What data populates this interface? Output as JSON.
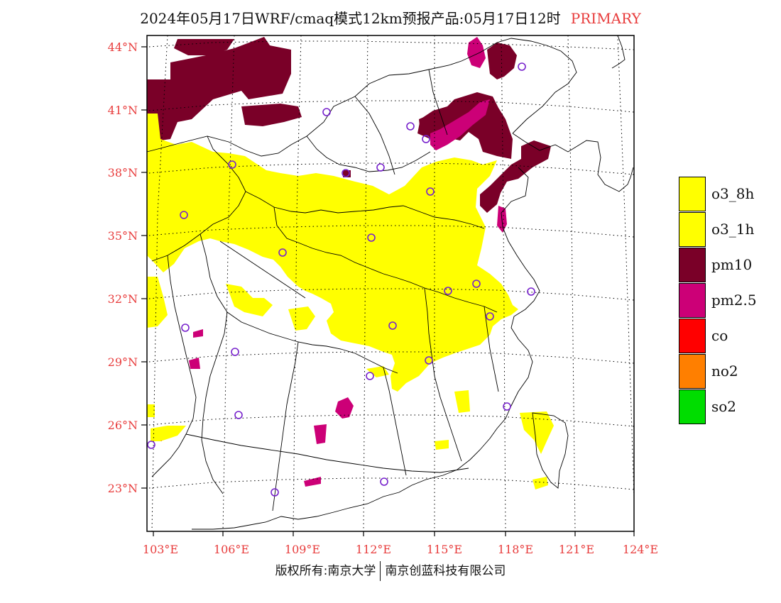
{
  "header": {
    "title": "2024年05月17日WRF/cmaq模式12km预报产品:05月17日12时",
    "tag": "PRIMARY"
  },
  "map": {
    "lat_labels": [
      "44°N",
      "41°N",
      "38°N",
      "35°N",
      "32°N",
      "29°N",
      "26°N",
      "23°N"
    ],
    "lon_labels": [
      "103°E",
      "106°E",
      "109°E",
      "112°E",
      "115°E",
      "118°E",
      "121°E",
      "124°E"
    ],
    "label_color": "#e83c3c",
    "layers": [
      {
        "name": "o3_8h",
        "color": "#ffff00"
      },
      {
        "name": "pm10",
        "color": "#7a0028"
      },
      {
        "name": "pm2.5",
        "color": "#cc0077"
      },
      {
        "name": "station",
        "color": "#7722cc"
      }
    ]
  },
  "legend": {
    "items": [
      {
        "label": "o3_8h",
        "color": "#ffff00"
      },
      {
        "label": "o3_1h",
        "color": "#ffff00"
      },
      {
        "label": "pm10",
        "color": "#7a0028"
      },
      {
        "label": "pm2.5",
        "color": "#cc0077"
      },
      {
        "label": "co",
        "color": "#ff0000"
      },
      {
        "label": "no2",
        "color": "#ff7f00"
      },
      {
        "label": "so2",
        "color": "#00dd00"
      }
    ]
  },
  "footer": {
    "left": "版权所有:南京大学",
    "right": "南京创蓝科技有限公司"
  }
}
